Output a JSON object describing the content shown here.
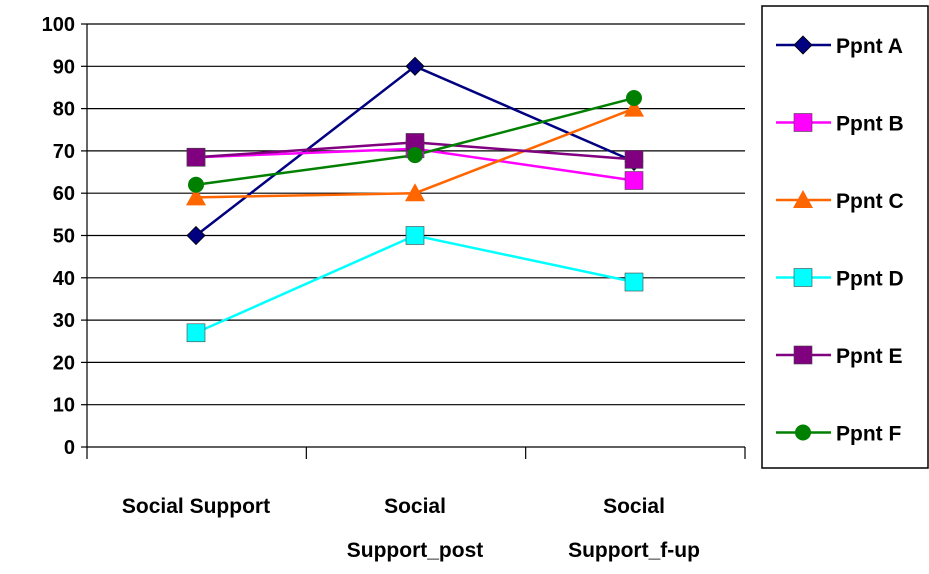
{
  "chart_data": {
    "type": "line",
    "title": "",
    "xlabel": "",
    "ylabel": "",
    "categories": [
      [
        "Social Support"
      ],
      [
        "Social",
        "Support_post"
      ],
      [
        "Social",
        "Support_f-up"
      ]
    ],
    "ylim": [
      0,
      100
    ],
    "yticks": [
      0,
      10,
      20,
      30,
      40,
      50,
      60,
      70,
      80,
      90,
      100
    ],
    "grid": true,
    "legend_position": "right",
    "series": [
      {
        "name": "Ppnt A",
        "values": [
          50,
          90,
          67.5
        ],
        "color": "#000080",
        "marker": "diamond"
      },
      {
        "name": "Ppnt B",
        "values": [
          68.5,
          70.5,
          63
        ],
        "color": "#ff00ff",
        "marker": "square"
      },
      {
        "name": "Ppnt C",
        "values": [
          59,
          60,
          80
        ],
        "color": "#ff6600",
        "marker": "triangle"
      },
      {
        "name": "Ppnt D",
        "values": [
          27,
          50,
          39
        ],
        "color": "#00ffff",
        "marker": "square"
      },
      {
        "name": "Ppnt E",
        "values": [
          68.5,
          72,
          68
        ],
        "color": "#800080",
        "marker": "square"
      },
      {
        "name": "Ppnt F",
        "values": [
          62,
          69,
          82.5
        ],
        "color": "#008000",
        "marker": "circle"
      }
    ]
  }
}
